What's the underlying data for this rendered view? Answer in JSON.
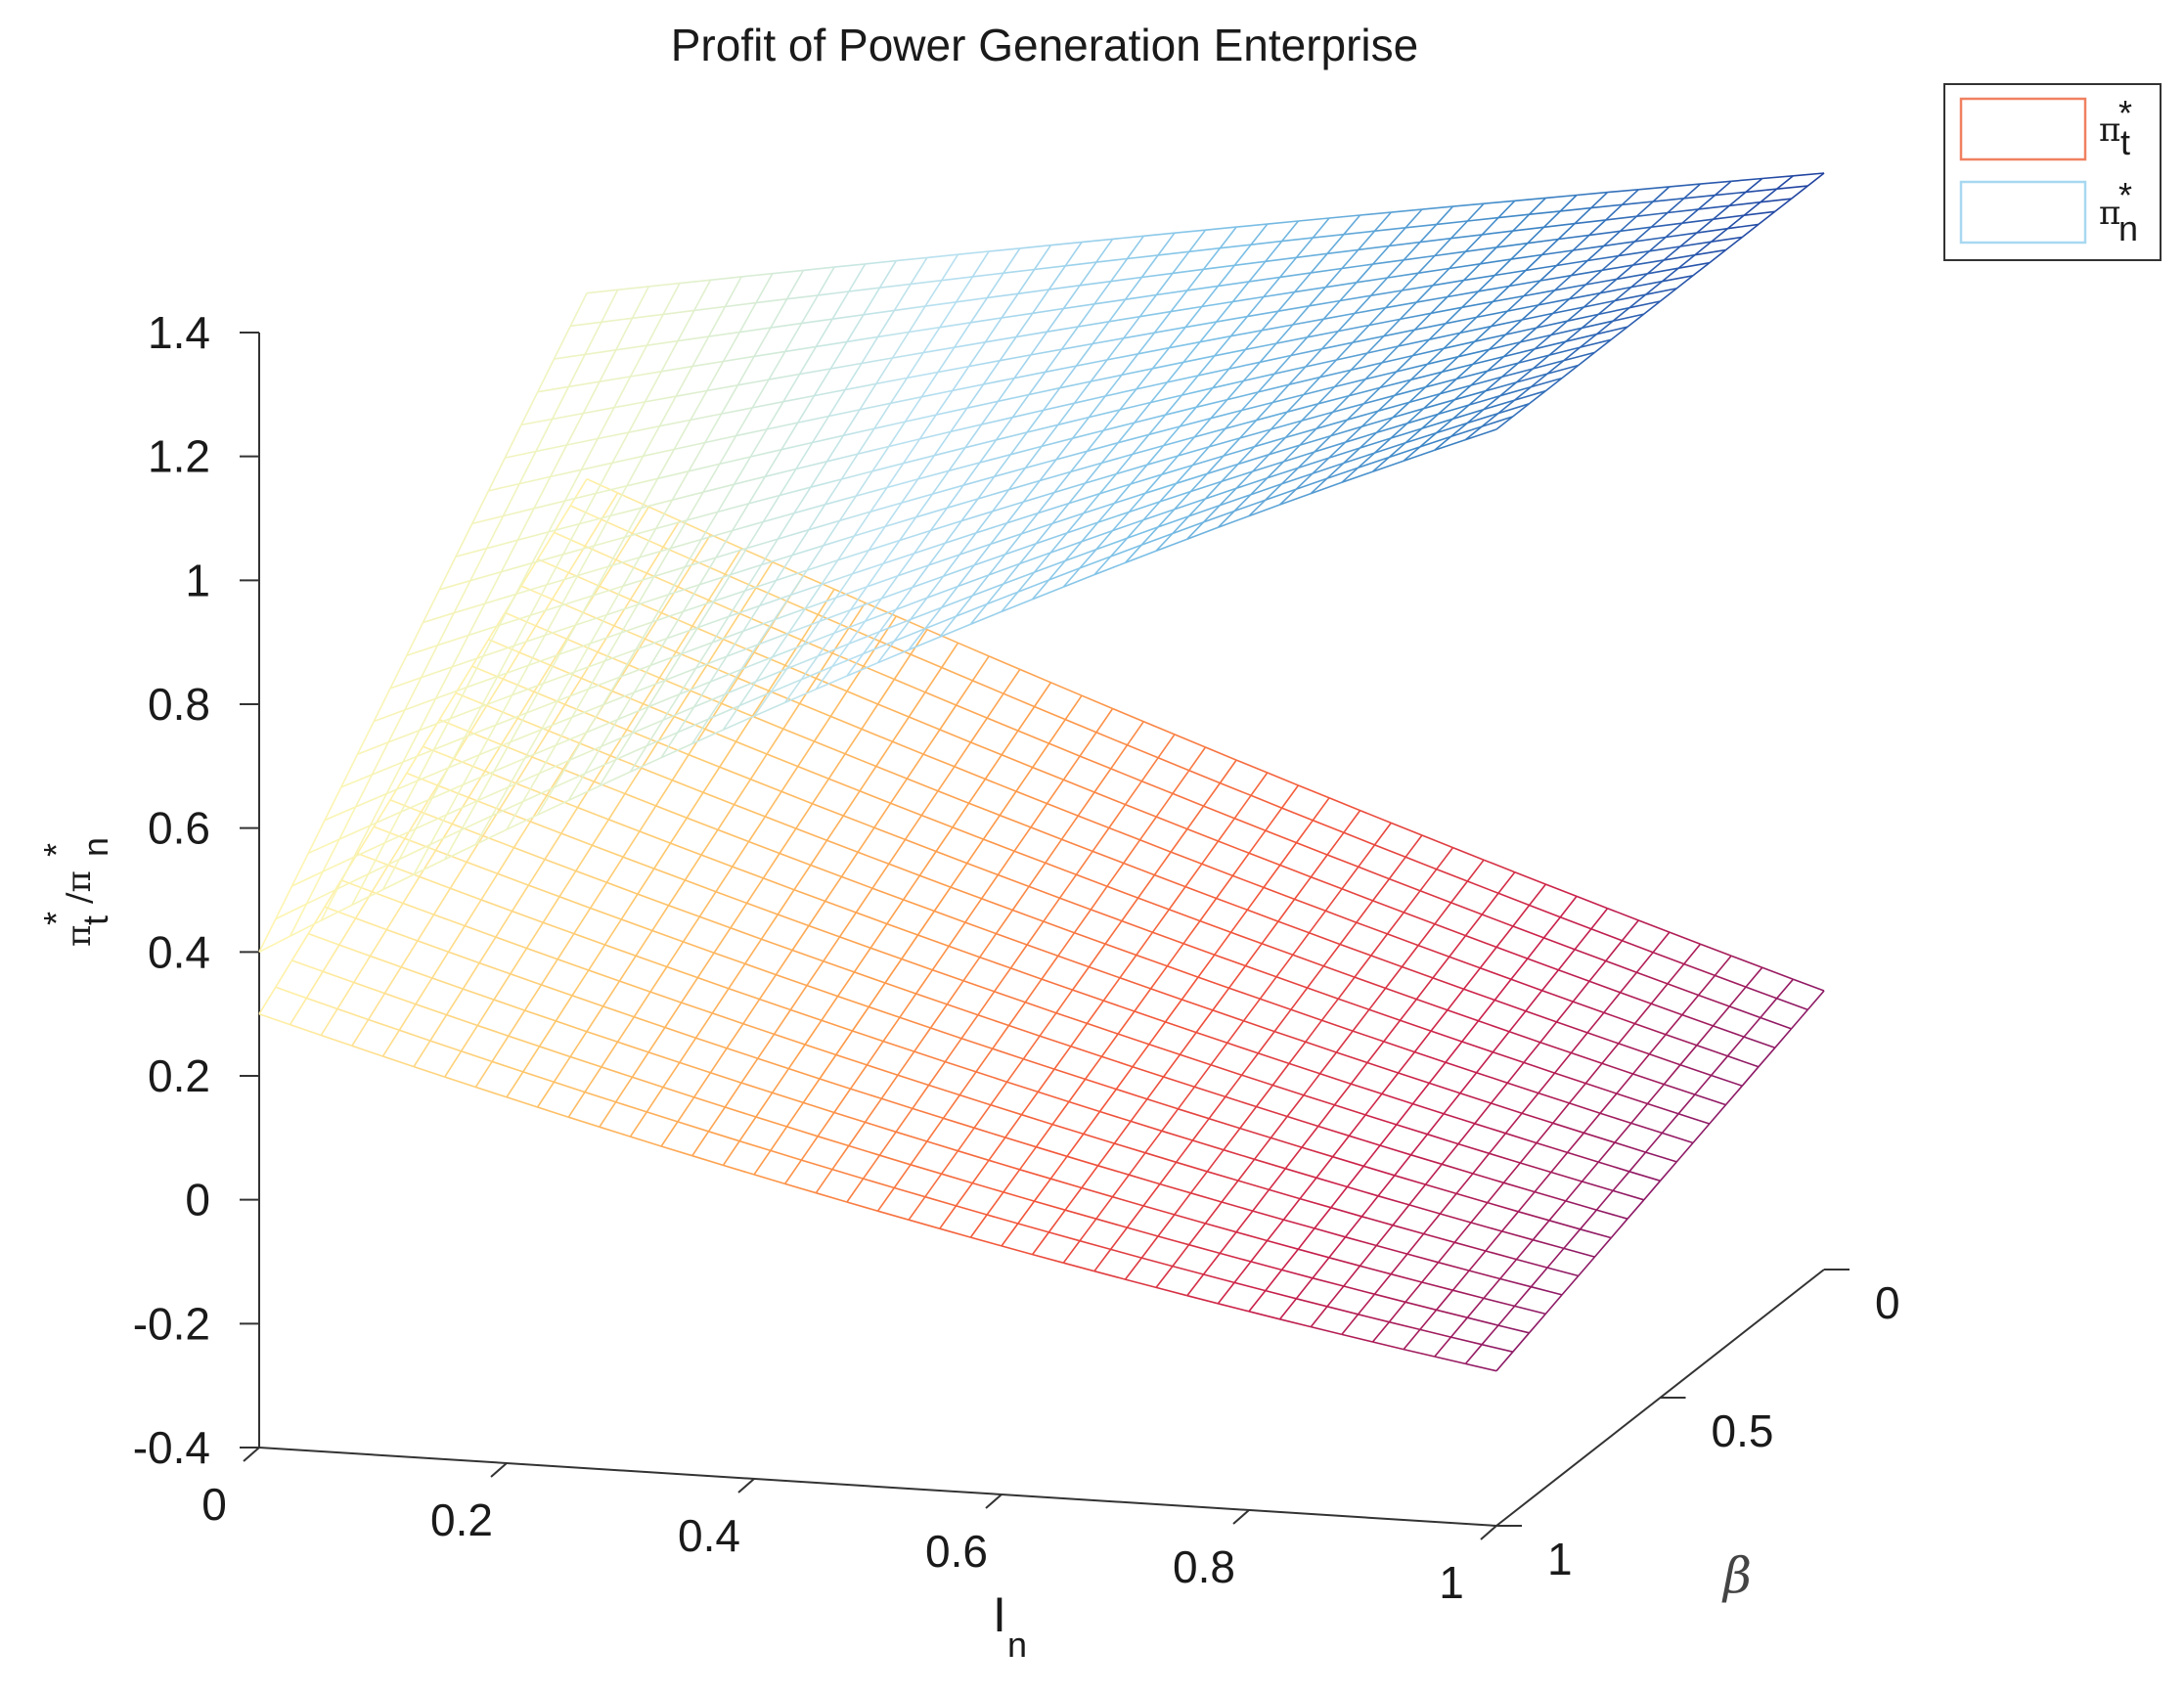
{
  "chart_data": {
    "type": "surface",
    "title": "Profit of Power Generation Enterprise",
    "xlabel": {
      "main": "I",
      "sub": "n"
    },
    "ylabel": "β",
    "zlabel": {
      "main": "π",
      "sub1": "t",
      "mid": "/π",
      "sub2": "n",
      "star": "*"
    },
    "xlim": [
      0,
      1
    ],
    "ylim": [
      0,
      1
    ],
    "zlim": [
      -0.4,
      1.4
    ],
    "xticks": [
      "0",
      "0.2",
      "0.4",
      "0.6",
      "0.8",
      "1"
    ],
    "yticks": [
      "0",
      "0.5",
      "1"
    ],
    "zticks": [
      "1.4",
      "1.2",
      "1",
      "0.8",
      "0.6",
      "0.4",
      "0.2",
      "0",
      "-0.2",
      "-0.4"
    ],
    "grid": {
      "x_lines": 41,
      "y_lines": 21
    },
    "legend": {
      "position": "top-right",
      "entries": [
        {
          "label": "π",
          "sub": "t",
          "star": "*",
          "color": "#f08060"
        },
        {
          "label": "π",
          "sub": "n",
          "star": "*",
          "color": "#a8d8f0"
        }
      ]
    },
    "series": [
      {
        "name": "π*t",
        "colormap": "yellow-orange-red",
        "corners": {
          "x0_y1": 0.3,
          "x1_y1": -0.15,
          "x0_y0": 0.75,
          "x1_y0": 0.05
        },
        "colors": [
          "#fff1a8",
          "#fec76c",
          "#fd9a4a",
          "#f2553a",
          "#c9204a",
          "#8d1a66"
        ]
      },
      {
        "name": "π*n",
        "colormap": "yellow-lightblue-darkblue",
        "corners": {
          "x0_y1": 0.4,
          "x1_y1": 1.37,
          "x0_y0": 1.05,
          "x1_y0": 1.37
        },
        "colors": [
          "#fff5b0",
          "#e8f3c8",
          "#b8e0f0",
          "#7cc0e6",
          "#3d86c6",
          "#1f3f9e"
        ]
      }
    ]
  }
}
